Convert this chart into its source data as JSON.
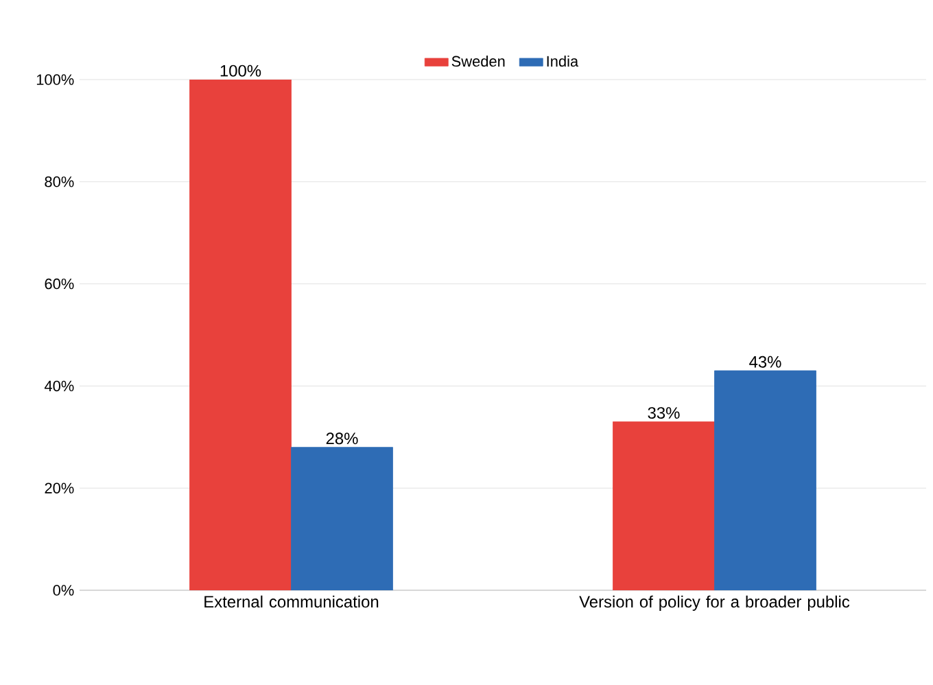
{
  "chart_data": {
    "type": "bar",
    "categories": [
      "External communication",
      "Version of policy for a broader public"
    ],
    "series": [
      {
        "name": "Sweden",
        "color": "#e8413c",
        "values": [
          100,
          33
        ],
        "value_labels": [
          "100%",
          "33%"
        ]
      },
      {
        "name": "India",
        "color": "#2e6cb5",
        "values": [
          28,
          43
        ],
        "value_labels": [
          "28%",
          "43%"
        ]
      }
    ],
    "ylim": [
      0,
      100
    ],
    "yticks": [
      {
        "value": 0,
        "label": "0%"
      },
      {
        "value": 20,
        "label": "20%"
      },
      {
        "value": 40,
        "label": "40%"
      },
      {
        "value": 60,
        "label": "60%"
      },
      {
        "value": 80,
        "label": "80%"
      },
      {
        "value": 100,
        "label": "100%"
      }
    ],
    "grid": "y",
    "legend": "top"
  }
}
